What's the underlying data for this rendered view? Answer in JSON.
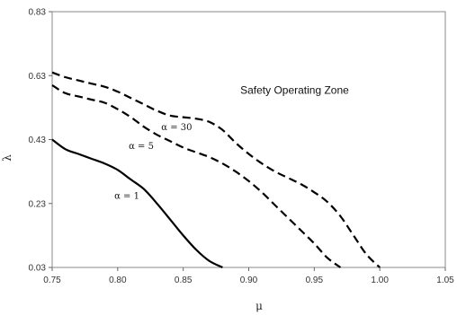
{
  "chart_data": {
    "type": "line",
    "title": "",
    "xlabel": "μ",
    "ylabel": "λ",
    "xlim": [
      0.75,
      1.05
    ],
    "ylim": [
      0.03,
      0.83
    ],
    "xticks": [
      "0.75",
      "0.80",
      "0.85",
      "0.90",
      "0.95",
      "1.00",
      "1.05"
    ],
    "yticks": [
      "0.03",
      "0.23",
      "0.43",
      "0.63",
      "0.83"
    ],
    "grid": false,
    "annotations": [
      {
        "text": "Safety Operating Zone",
        "x": 0.935,
        "y": 0.585
      }
    ],
    "series": [
      {
        "name": "α = 1",
        "style": "solid",
        "color": "#000000",
        "label_at": [
          0.807,
          0.255
        ],
        "points": [
          [
            0.75,
            0.43
          ],
          [
            0.76,
            0.4
          ],
          [
            0.77,
            0.385
          ],
          [
            0.78,
            0.37
          ],
          [
            0.79,
            0.355
          ],
          [
            0.8,
            0.335
          ],
          [
            0.81,
            0.305
          ],
          [
            0.82,
            0.275
          ],
          [
            0.83,
            0.23
          ],
          [
            0.84,
            0.18
          ],
          [
            0.85,
            0.13
          ],
          [
            0.86,
            0.085
          ],
          [
            0.87,
            0.05
          ],
          [
            0.88,
            0.03
          ]
        ]
      },
      {
        "name": "α = 5",
        "style": "dashed",
        "color": "#000000",
        "label_at": [
          0.818,
          0.41
        ],
        "points": [
          [
            0.75,
            0.6
          ],
          [
            0.76,
            0.575
          ],
          [
            0.77,
            0.565
          ],
          [
            0.78,
            0.555
          ],
          [
            0.79,
            0.545
          ],
          [
            0.8,
            0.525
          ],
          [
            0.81,
            0.5
          ],
          [
            0.82,
            0.47
          ],
          [
            0.83,
            0.445
          ],
          [
            0.84,
            0.425
          ],
          [
            0.85,
            0.405
          ],
          [
            0.86,
            0.39
          ],
          [
            0.87,
            0.375
          ],
          [
            0.88,
            0.355
          ],
          [
            0.89,
            0.33
          ],
          [
            0.9,
            0.3
          ],
          [
            0.91,
            0.265
          ],
          [
            0.92,
            0.225
          ],
          [
            0.93,
            0.185
          ],
          [
            0.94,
            0.145
          ],
          [
            0.95,
            0.105
          ],
          [
            0.96,
            0.06
          ],
          [
            0.97,
            0.03
          ]
        ]
      },
      {
        "name": "α = 30",
        "style": "dashed",
        "color": "#000000",
        "label_at": [
          0.845,
          0.47
        ],
        "points": [
          [
            0.75,
            0.64
          ],
          [
            0.76,
            0.625
          ],
          [
            0.77,
            0.615
          ],
          [
            0.78,
            0.605
          ],
          [
            0.79,
            0.595
          ],
          [
            0.8,
            0.58
          ],
          [
            0.81,
            0.56
          ],
          [
            0.82,
            0.54
          ],
          [
            0.83,
            0.52
          ],
          [
            0.84,
            0.505
          ],
          [
            0.85,
            0.5
          ],
          [
            0.86,
            0.495
          ],
          [
            0.87,
            0.485
          ],
          [
            0.88,
            0.46
          ],
          [
            0.89,
            0.42
          ],
          [
            0.9,
            0.385
          ],
          [
            0.91,
            0.355
          ],
          [
            0.92,
            0.33
          ],
          [
            0.93,
            0.31
          ],
          [
            0.94,
            0.29
          ],
          [
            0.95,
            0.265
          ],
          [
            0.96,
            0.235
          ],
          [
            0.97,
            0.19
          ],
          [
            0.98,
            0.13
          ],
          [
            0.99,
            0.07
          ],
          [
            1.0,
            0.03
          ]
        ]
      }
    ]
  }
}
